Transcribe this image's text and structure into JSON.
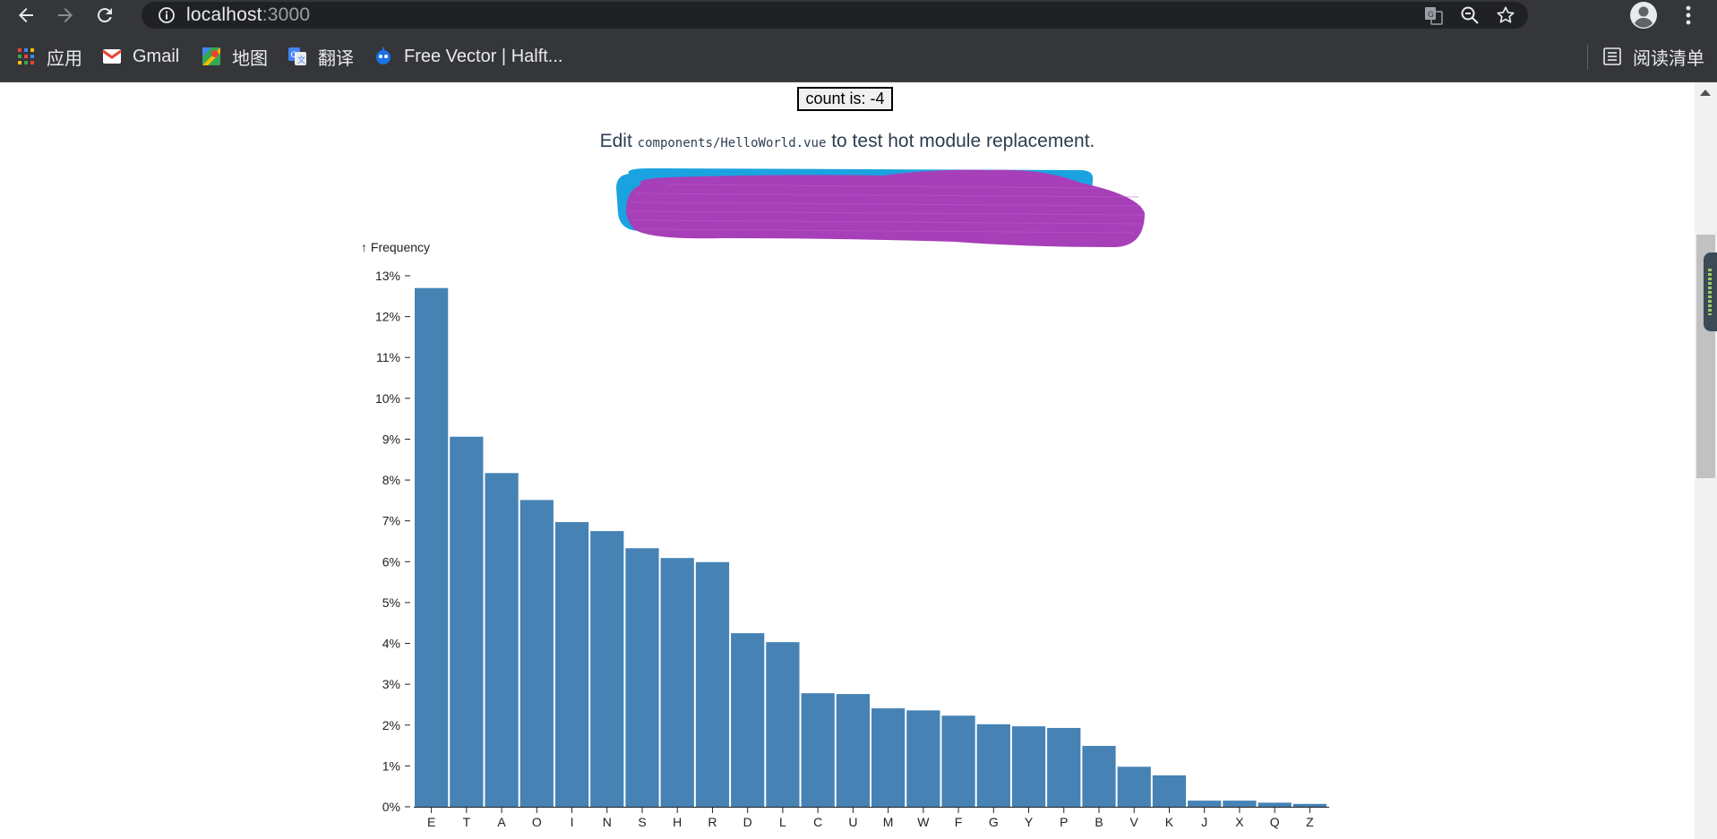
{
  "browser": {
    "url_host": "localhost",
    "url_port": ":3000",
    "bookmarks": [
      {
        "label": "应用",
        "icon": "apps-grid-icon"
      },
      {
        "label": "Gmail",
        "icon": "gmail-icon"
      },
      {
        "label": "地图",
        "icon": "maps-icon"
      },
      {
        "label": "翻译",
        "icon": "translate-icon"
      },
      {
        "label": "Free Vector | Halft...",
        "icon": "bookmark-site-icon"
      }
    ],
    "reading_list": "阅读清单"
  },
  "app": {
    "count_label": "count is: -4",
    "edit_prefix": "Edit ",
    "edit_code": "components/HelloWorld.vue",
    "edit_suffix": " to test hot module replacement."
  },
  "chart_data": {
    "type": "bar",
    "ylabel": "↑ Frequency",
    "ylim": [
      0,
      0.13
    ],
    "y_ticks": [
      "0%",
      "1%",
      "2%",
      "3%",
      "4%",
      "5%",
      "6%",
      "7%",
      "8%",
      "9%",
      "10%",
      "11%",
      "12%",
      "13%"
    ],
    "categories": [
      "E",
      "T",
      "A",
      "O",
      "I",
      "N",
      "S",
      "H",
      "R",
      "D",
      "L",
      "C",
      "U",
      "M",
      "W",
      "F",
      "G",
      "Y",
      "P",
      "B",
      "V",
      "K",
      "J",
      "X",
      "Q",
      "Z"
    ],
    "values": [
      0.127,
      0.0906,
      0.0817,
      0.0751,
      0.0697,
      0.0675,
      0.0633,
      0.0609,
      0.0599,
      0.0425,
      0.0403,
      0.0278,
      0.0276,
      0.0241,
      0.0236,
      0.0223,
      0.0202,
      0.0197,
      0.0193,
      0.0149,
      0.0098,
      0.0077,
      0.0015,
      0.0015,
      0.001,
      0.0007
    ],
    "color": "#4682b4",
    "grid": false
  }
}
